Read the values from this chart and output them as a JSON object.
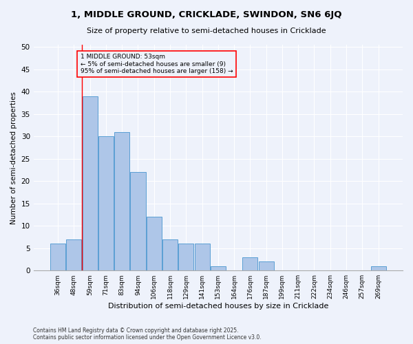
{
  "title1": "1, MIDDLE GROUND, CRICKLADE, SWINDON, SN6 6JQ",
  "title2": "Size of property relative to semi-detached houses in Cricklade",
  "xlabel": "Distribution of semi-detached houses by size in Cricklade",
  "ylabel": "Number of semi-detached properties",
  "categories": [
    "36sqm",
    "48sqm",
    "59sqm",
    "71sqm",
    "83sqm",
    "94sqm",
    "106sqm",
    "118sqm",
    "129sqm",
    "141sqm",
    "153sqm",
    "164sqm",
    "176sqm",
    "187sqm",
    "199sqm",
    "211sqm",
    "222sqm",
    "234sqm",
    "246sqm",
    "257sqm",
    "269sqm"
  ],
  "values": [
    6,
    7,
    39,
    30,
    31,
    22,
    12,
    7,
    6,
    6,
    1,
    0,
    3,
    2,
    0,
    0,
    0,
    0,
    0,
    0,
    1
  ],
  "bar_color": "#aec6e8",
  "bar_edge_color": "#5a9fd4",
  "vline_x": 1.5,
  "vline_color": "red",
  "annotation_title": "1 MIDDLE GROUND: 53sqm",
  "annotation_line1": "← 5% of semi-detached houses are smaller (9)",
  "annotation_line2": "95% of semi-detached houses are larger (158) →",
  "annotation_box_color": "red",
  "ylim": [
    0,
    50
  ],
  "yticks": [
    0,
    5,
    10,
    15,
    20,
    25,
    30,
    35,
    40,
    45,
    50
  ],
  "bg_color": "#eef2fb",
  "footer": "Contains HM Land Registry data © Crown copyright and database right 2025.\nContains public sector information licensed under the Open Government Licence v3.0."
}
